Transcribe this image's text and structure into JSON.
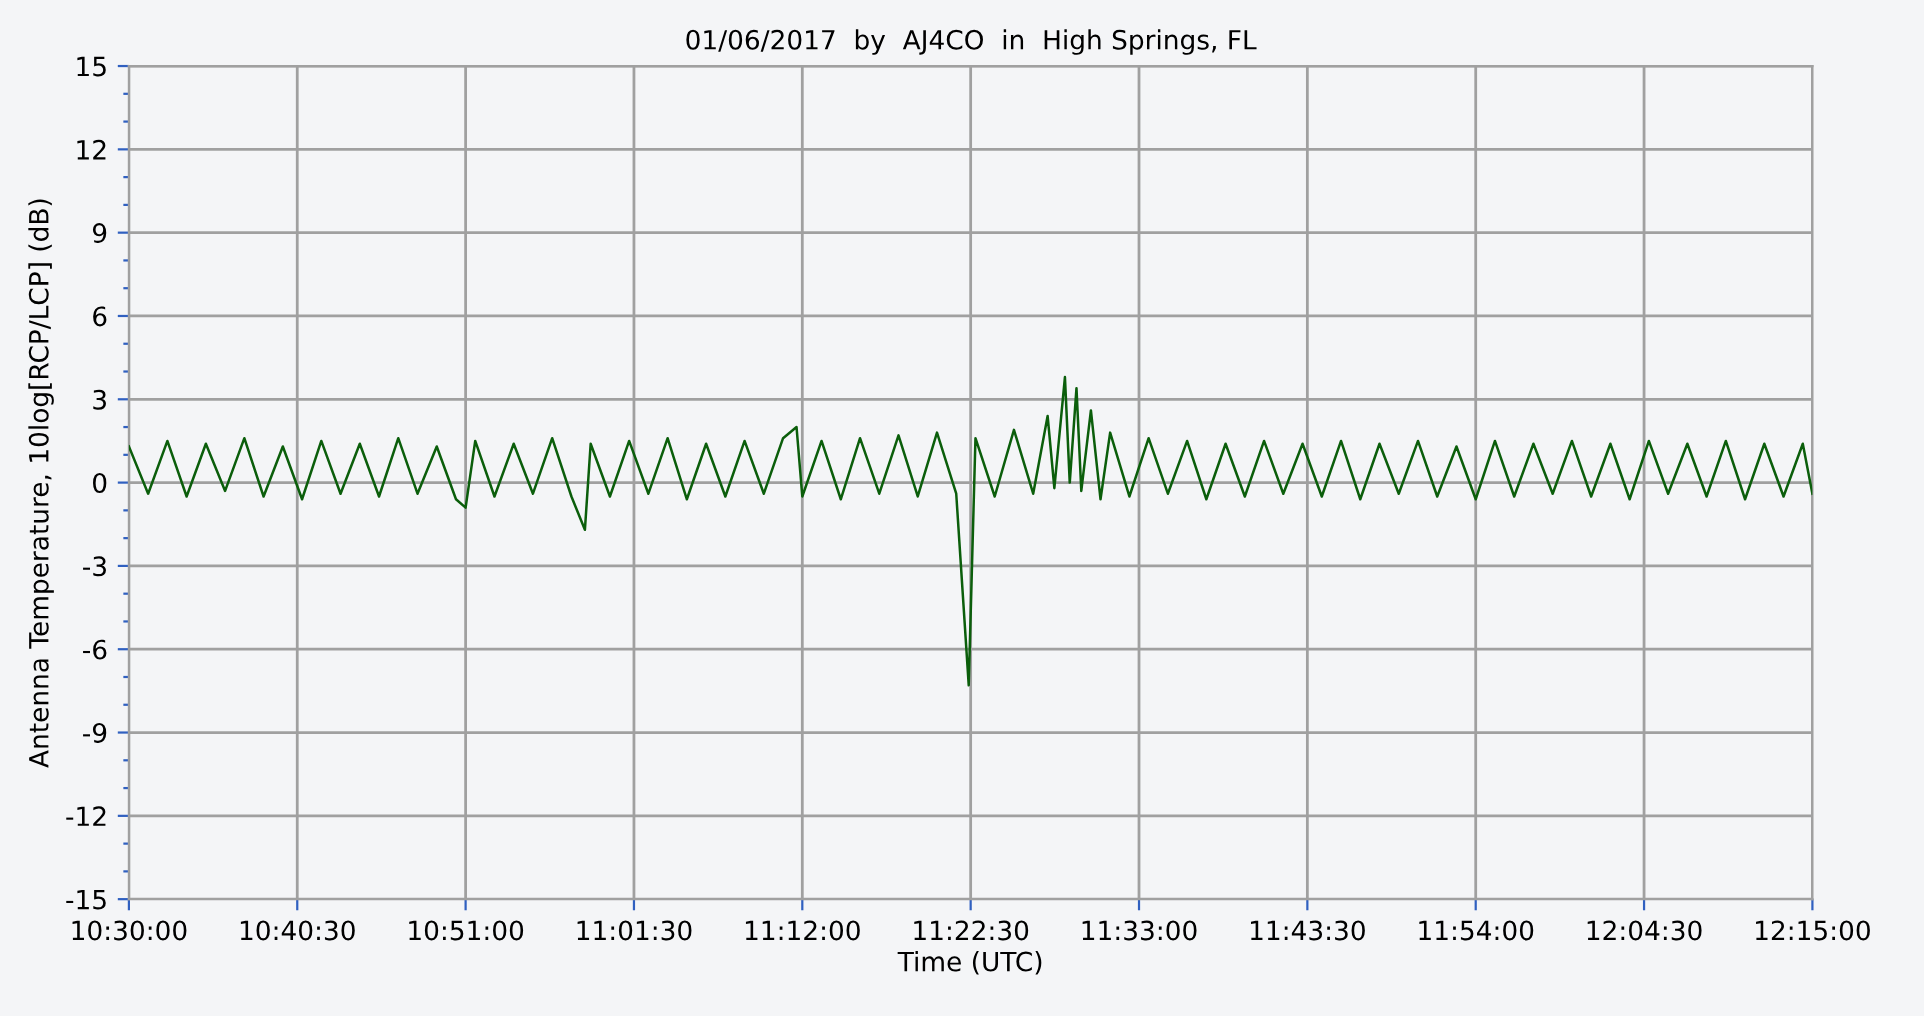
{
  "chart_data": {
    "type": "line",
    "title": "01/06/2017  by  AJ4CO  in  High Springs, FL",
    "xlabel": "Time (UTC)",
    "ylabel": "Antenna Temperature, 10log[RCP/LCP] (dB)",
    "x": [
      10.5,
      10.52,
      10.54,
      10.56,
      10.58,
      10.6,
      10.62,
      10.64,
      10.66,
      10.68,
      10.7,
      10.72,
      10.74,
      10.76,
      10.78,
      10.8,
      10.82,
      10.84,
      10.85,
      10.86,
      10.88,
      10.9,
      10.92,
      10.94,
      10.96,
      10.974,
      10.98,
      11.0,
      11.02,
      11.04,
      11.06,
      11.08,
      11.1,
      11.12,
      11.14,
      11.16,
      11.18,
      11.194,
      11.2,
      11.22,
      11.24,
      11.26,
      11.28,
      11.3,
      11.32,
      11.34,
      11.36,
      11.373,
      11.38,
      11.4,
      11.42,
      11.44,
      11.455,
      11.462,
      11.473,
      11.478,
      11.485,
      11.49,
      11.5,
      11.51,
      11.52,
      11.54,
      11.56,
      11.58,
      11.6,
      11.62,
      11.64,
      11.66,
      11.68,
      11.7,
      11.72,
      11.74,
      11.76,
      11.78,
      11.8,
      11.82,
      11.84,
      11.86,
      11.88,
      11.9,
      11.92,
      11.94,
      11.96,
      11.98,
      12.0,
      12.02,
      12.04,
      12.06,
      12.08,
      12.1,
      12.12,
      12.14,
      12.16,
      12.18,
      12.2,
      12.22,
      12.24,
      12.25
    ],
    "series": [
      {
        "color": "#0b5e0b",
        "values": [
          1.3,
          -0.4,
          1.5,
          -0.5,
          1.4,
          -0.3,
          1.6,
          -0.5,
          1.3,
          -0.6,
          1.5,
          -0.4,
          1.4,
          -0.5,
          1.6,
          -0.4,
          1.3,
          -0.6,
          -0.9,
          1.5,
          -0.5,
          1.4,
          -0.4,
          1.6,
          -0.5,
          -1.7,
          1.4,
          -0.5,
          1.5,
          -0.4,
          1.6,
          -0.6,
          1.4,
          -0.5,
          1.5,
          -0.4,
          1.6,
          2.0,
          -0.5,
          1.5,
          -0.6,
          1.6,
          -0.4,
          1.7,
          -0.5,
          1.8,
          -0.4,
          -7.3,
          1.6,
          -0.5,
          1.9,
          -0.4,
          2.4,
          -0.2,
          3.8,
          0.0,
          3.4,
          -0.3,
          2.6,
          -0.6,
          1.8,
          -0.5,
          1.6,
          -0.4,
          1.5,
          -0.6,
          1.4,
          -0.5,
          1.5,
          -0.4,
          1.4,
          -0.5,
          1.5,
          -0.6,
          1.4,
          -0.4,
          1.5,
          -0.5,
          1.3,
          -0.6,
          1.5,
          -0.5,
          1.4,
          -0.4,
          1.5,
          -0.5,
          1.4,
          -0.6,
          1.5,
          -0.4,
          1.4,
          -0.5,
          1.5,
          -0.6,
          1.4,
          -0.5,
          1.4,
          -0.4
        ]
      }
    ],
    "xlim": [
      10.5,
      12.25
    ],
    "xticks": [
      {
        "value": 10.5,
        "label": "10:30:00"
      },
      {
        "value": 10.675,
        "label": "10:40:30"
      },
      {
        "value": 10.85,
        "label": "10:51:00"
      },
      {
        "value": 11.025,
        "label": "11:01:30"
      },
      {
        "value": 11.2,
        "label": "11:12:00"
      },
      {
        "value": 11.375,
        "label": "11:22:30"
      },
      {
        "value": 11.55,
        "label": "11:33:00"
      },
      {
        "value": 11.725,
        "label": "11:43:30"
      },
      {
        "value": 11.9,
        "label": "11:54:00"
      },
      {
        "value": 12.075,
        "label": "12:04:30"
      },
      {
        "value": 12.25,
        "label": "12:15:00"
      }
    ],
    "ylim": [
      -15,
      15
    ],
    "yticks": [
      15,
      {
        "value": 14,
        "label": null
      },
      {
        "value": 13,
        "label": null
      },
      12,
      {
        "value": 11,
        "label": null
      },
      {
        "value": 10,
        "label": null
      },
      9,
      {
        "value": 8,
        "label": null
      },
      {
        "value": 7,
        "label": null
      },
      6,
      {
        "value": 5,
        "label": null
      },
      {
        "value": 4,
        "label": null
      },
      3,
      {
        "value": 2,
        "label": null
      },
      {
        "value": 1,
        "label": null
      },
      0,
      {
        "value": -1,
        "label": null
      },
      {
        "value": -2,
        "label": null
      },
      -3,
      {
        "value": -4,
        "label": null
      },
      {
        "value": -5,
        "label": null
      },
      -6,
      {
        "value": -7,
        "label": null
      },
      {
        "value": -8,
        "label": null
      },
      -9,
      {
        "value": -10,
        "label": null
      },
      {
        "value": -11,
        "label": null
      },
      -12,
      {
        "value": -13,
        "label": null
      },
      {
        "value": -14,
        "label": null
      },
      -15
    ],
    "grid": true,
    "marker": "none",
    "line_style": "solid"
  }
}
